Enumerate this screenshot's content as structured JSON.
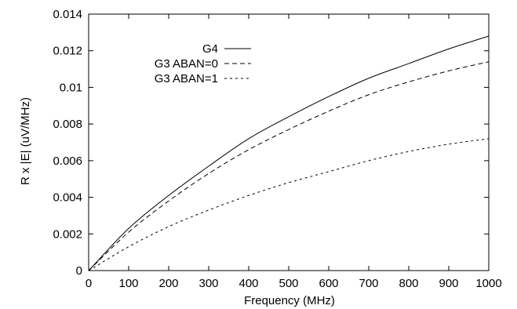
{
  "chart_data": {
    "type": "line",
    "title": "",
    "xlabel": "Frequency (MHz)",
    "ylabel": "R x |E| (uV/MHz)",
    "xlim": [
      0,
      1000
    ],
    "ylim": [
      0,
      0.014
    ],
    "xticks": [
      0,
      100,
      200,
      300,
      400,
      500,
      600,
      700,
      800,
      900,
      1000
    ],
    "xtick_labels": [
      "0",
      "100",
      "200",
      "300",
      "400",
      "500",
      "600",
      "700",
      "800",
      "900",
      "1000"
    ],
    "yticks": [
      0,
      0.002,
      0.004,
      0.006,
      0.008,
      0.01,
      0.012,
      0.014
    ],
    "ytick_labels": [
      "0",
      "0.002",
      "0.004",
      "0.006",
      "0.008",
      "0.01",
      "0.012",
      "0.014"
    ],
    "grid": false,
    "legend_position": "top-left",
    "x": [
      0,
      100,
      200,
      300,
      400,
      500,
      600,
      700,
      800,
      900,
      1000
    ],
    "series": [
      {
        "name": "G4",
        "style": "solid",
        "values": [
          0,
          0.0023,
          0.0041,
          0.0057,
          0.0072,
          0.0084,
          0.0095,
          0.0105,
          0.0113,
          0.0121,
          0.0128
        ]
      },
      {
        "name": "G3 ABAN=0",
        "style": "dashed",
        "values": [
          0,
          0.0021,
          0.0038,
          0.0053,
          0.0066,
          0.0077,
          0.0087,
          0.0096,
          0.0103,
          0.0109,
          0.0114
        ]
      },
      {
        "name": "G3 ABAN=1",
        "style": "dotted",
        "values": [
          0,
          0.0013,
          0.0024,
          0.0033,
          0.0041,
          0.0048,
          0.0054,
          0.006,
          0.0065,
          0.0069,
          0.0072
        ]
      }
    ]
  }
}
